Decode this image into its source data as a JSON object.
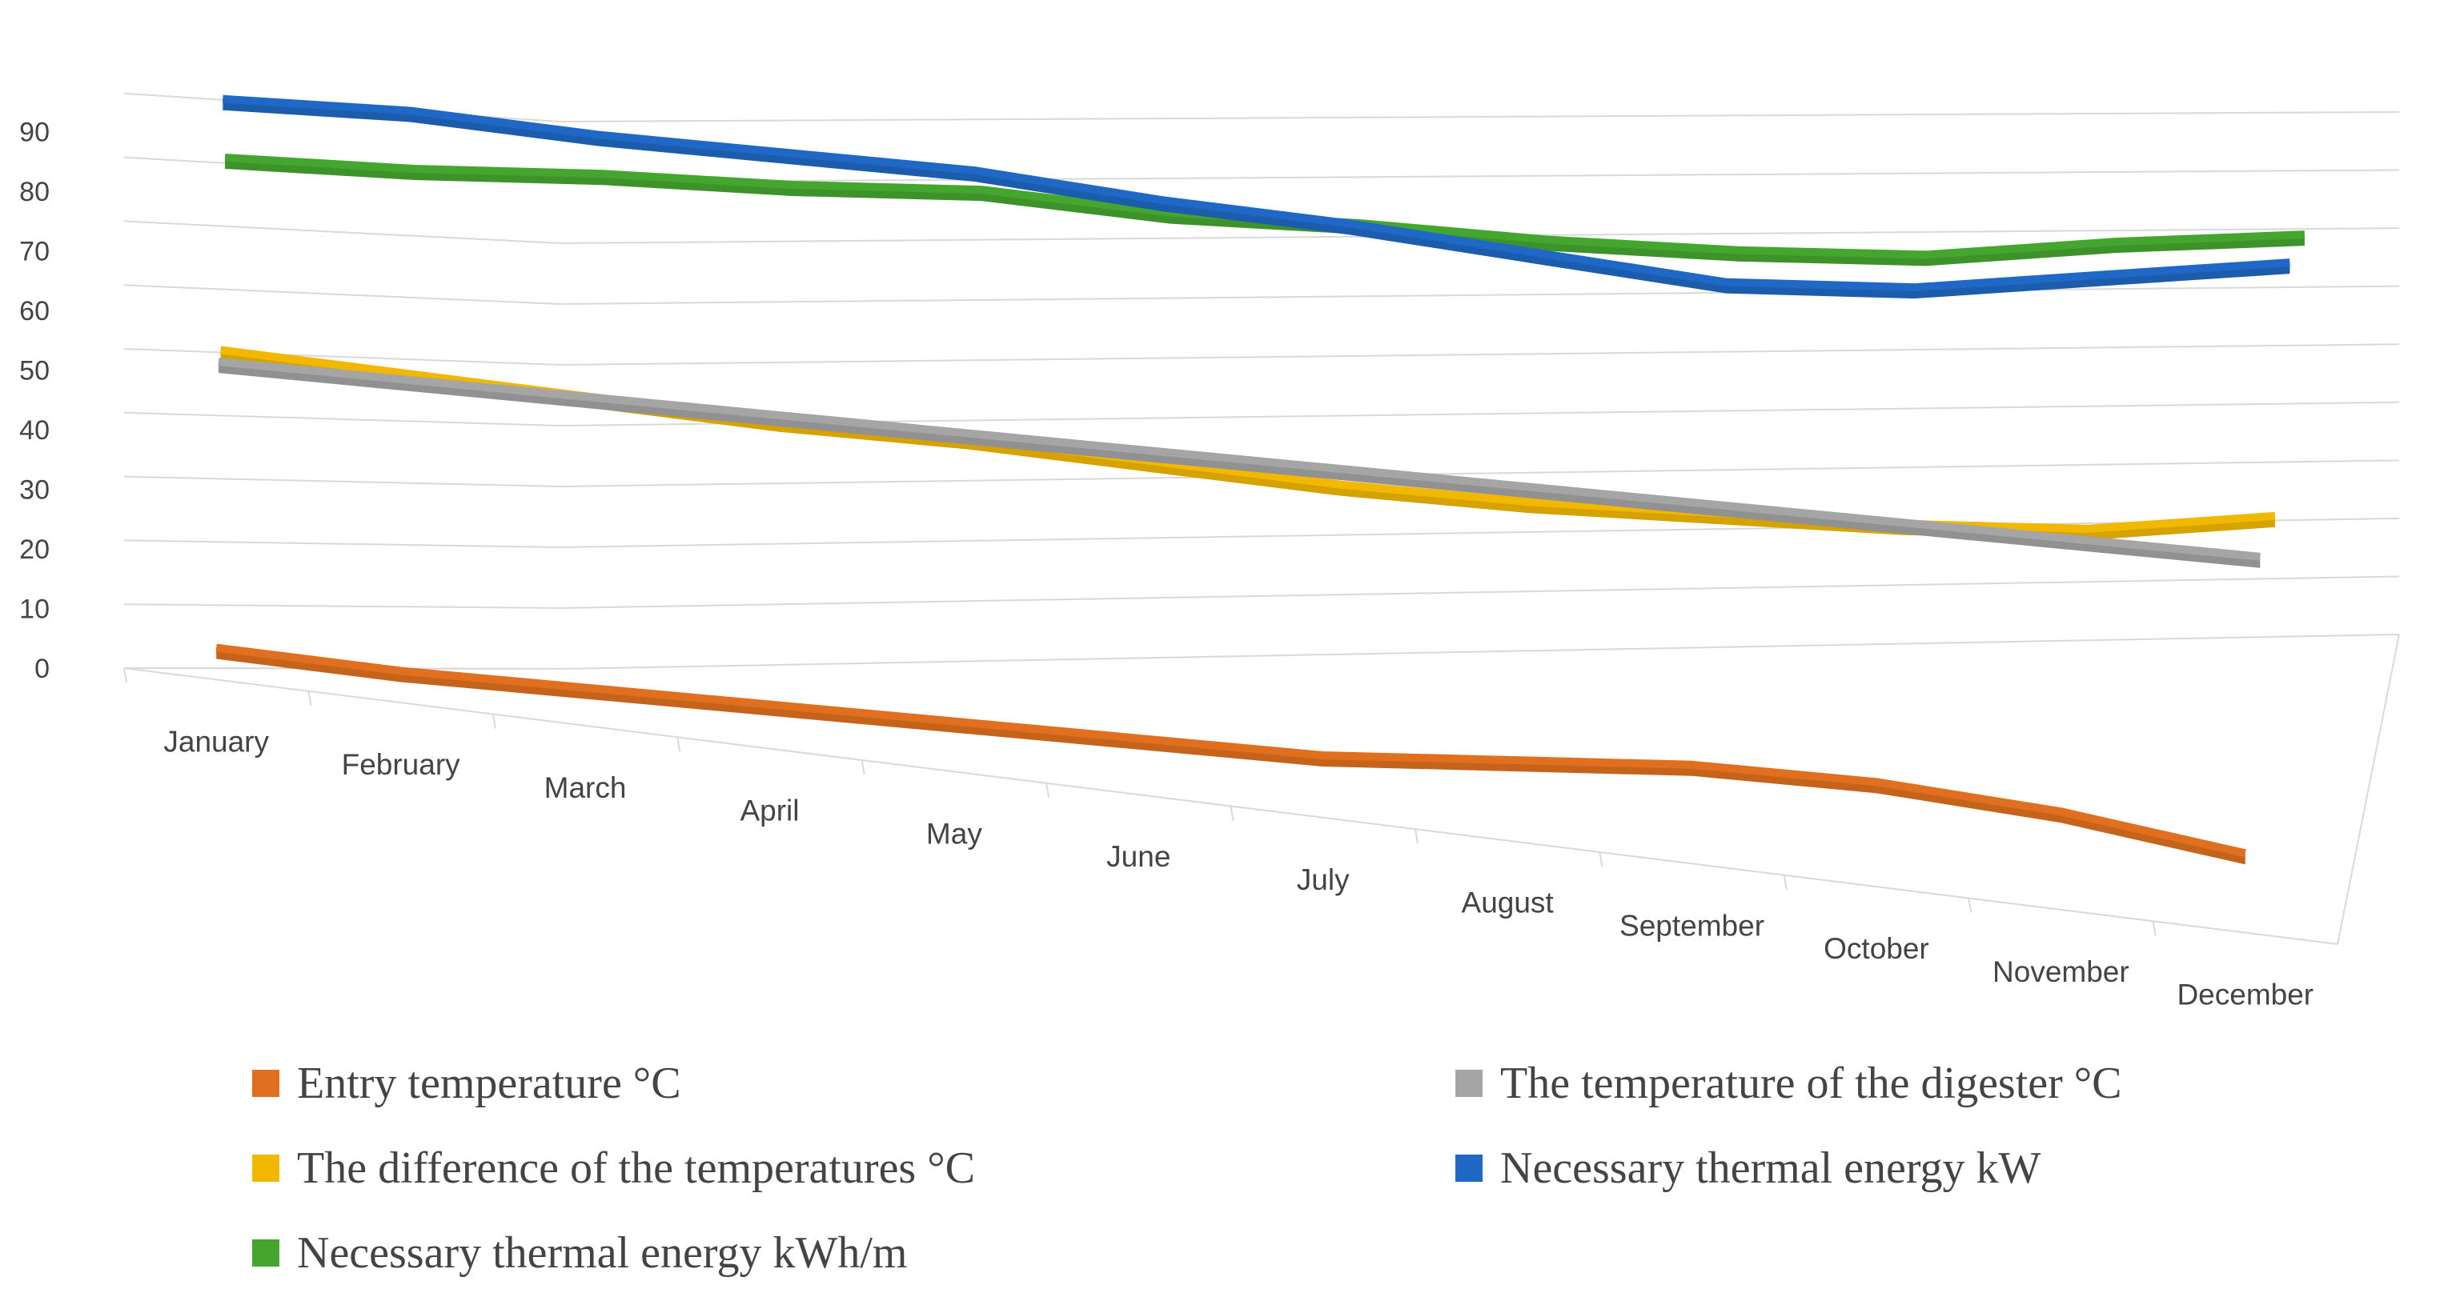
{
  "chart_data": {
    "type": "line",
    "title": "",
    "xlabel": "",
    "ylabel": "",
    "ylim": [
      0,
      90
    ],
    "yticks": [
      0,
      10,
      20,
      30,
      40,
      50,
      60,
      70,
      80,
      90
    ],
    "categories": [
      "January",
      "February",
      "March",
      "April",
      "May",
      "June",
      "July",
      "August",
      "September",
      "October",
      "November",
      "December"
    ],
    "series": [
      {
        "name": "Entry temperature °C",
        "color": "#E0701F",
        "values": [
          5,
          5,
          6,
          7,
          8,
          9,
          10,
          13,
          16,
          17,
          16,
          13
        ]
      },
      {
        "name": "The temperature of the digester °C",
        "color": "#A5A5A5",
        "values": [
          50,
          50,
          50,
          50,
          50,
          50,
          50,
          50,
          50,
          50,
          50,
          50
        ]
      },
      {
        "name": "The difference of the temperatures °C",
        "color": "#F2B800",
        "values": [
          52,
          50,
          48,
          46,
          45,
          43,
          41,
          40,
          40,
          40,
          41,
          45
        ]
      },
      {
        "name": "Necessary thermal energy kW",
        "color": "#1F68C5",
        "values": [
          93,
          92,
          89,
          87,
          85,
          81,
          78,
          74,
          70,
          70,
          73,
          76
        ]
      },
      {
        "name": "Necessary thermal energy kWh/m",
        "color": "#45A62F",
        "values": [
          84,
          82,
          81,
          79,
          78,
          74,
          72,
          69,
          67,
          66,
          68,
          69
        ]
      }
    ],
    "legend_position": "bottom",
    "grid": true
  }
}
